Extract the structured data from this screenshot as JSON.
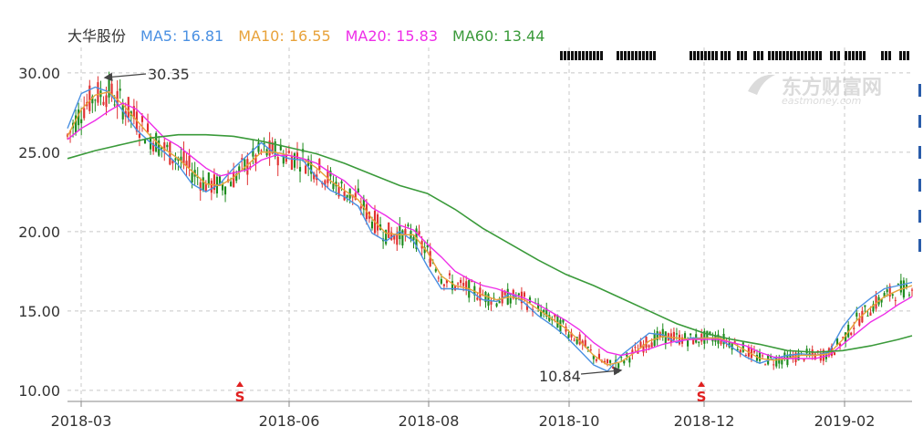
{
  "legend": {
    "stock_name": "大华股份",
    "ma5": "MA5: 16.81",
    "ma10": "MA10: 16.55",
    "ma20": "MA20: 15.83",
    "ma60": "MA60: 13.44"
  },
  "watermark": {
    "brand_cn": "东方财富网",
    "brand_en": "eastmoney.com"
  },
  "colors": {
    "up": "#e03030",
    "down": "#1c8a1c",
    "ma5": "#4a90e2",
    "ma10": "#e8a23a",
    "ma20": "#ee2ee8",
    "ma60": "#3a9a3a",
    "grid": "#c8c8c8",
    "signal": "#e02020"
  },
  "chart_data": {
    "type": "candlestick",
    "x_ticks": [
      "2018-03",
      "2018-06",
      "2018-08",
      "2018-10",
      "2018-12",
      "2019-02"
    ],
    "y_ticks": [
      "10.00",
      "15.00",
      "20.00",
      "25.00",
      "30.00"
    ],
    "ylim": [
      9.3,
      31.6
    ],
    "grid": true,
    "annotations": {
      "high_label": "30.35",
      "low_label": "10.84",
      "signal_label": "S"
    },
    "series": [
      {
        "name": "MA5",
        "value": 16.81,
        "points": [
          [
            0,
            26.5
          ],
          [
            5,
            28.7
          ],
          [
            10,
            29.1
          ],
          [
            15,
            28.8
          ],
          [
            20,
            27.6
          ],
          [
            25,
            26.4
          ],
          [
            30,
            25.6
          ],
          [
            35,
            25.0
          ],
          [
            40,
            24.2
          ],
          [
            45,
            23.0
          ],
          [
            50,
            22.5
          ],
          [
            55,
            23.0
          ],
          [
            60,
            24.0
          ],
          [
            65,
            24.8
          ],
          [
            70,
            25.6
          ],
          [
            75,
            24.9
          ],
          [
            80,
            24.6
          ],
          [
            85,
            24.5
          ],
          [
            90,
            23.4
          ],
          [
            95,
            22.6
          ],
          [
            100,
            22.2
          ],
          [
            105,
            21.6
          ],
          [
            110,
            19.9
          ],
          [
            115,
            19.4
          ],
          [
            120,
            20.0
          ],
          [
            125,
            19.4
          ],
          [
            130,
            17.8
          ],
          [
            135,
            16.4
          ],
          [
            140,
            16.4
          ],
          [
            145,
            16.3
          ],
          [
            150,
            15.7
          ],
          [
            155,
            15.6
          ],
          [
            160,
            16.1
          ],
          [
            165,
            15.5
          ],
          [
            170,
            14.7
          ],
          [
            175,
            14.1
          ],
          [
            180,
            13.4
          ],
          [
            185,
            12.5
          ],
          [
            190,
            11.6
          ],
          [
            195,
            11.2
          ],
          [
            200,
            12.2
          ],
          [
            205,
            12.9
          ],
          [
            210,
            13.6
          ],
          [
            215,
            13.5
          ],
          [
            220,
            13.0
          ],
          [
            225,
            13.3
          ],
          [
            230,
            13.3
          ],
          [
            235,
            13.3
          ],
          [
            240,
            12.7
          ],
          [
            245,
            12.1
          ],
          [
            250,
            11.7
          ],
          [
            255,
            12.0
          ],
          [
            260,
            12.2
          ],
          [
            265,
            12.3
          ],
          [
            270,
            12.2
          ],
          [
            275,
            12.4
          ],
          [
            280,
            14.0
          ],
          [
            285,
            15.1
          ],
          [
            290,
            15.8
          ],
          [
            295,
            16.4
          ],
          [
            300,
            16.6
          ],
          [
            305,
            16.8
          ]
        ]
      },
      {
        "name": "MA10",
        "value": 16.55,
        "points": [
          [
            0,
            26.0
          ],
          [
            5,
            27.7
          ],
          [
            10,
            28.6
          ],
          [
            15,
            28.8
          ],
          [
            20,
            28.0
          ],
          [
            25,
            27.0
          ],
          [
            30,
            26.0
          ],
          [
            35,
            25.2
          ],
          [
            40,
            24.6
          ],
          [
            45,
            23.8
          ],
          [
            50,
            23.0
          ],
          [
            55,
            22.9
          ],
          [
            60,
            23.4
          ],
          [
            65,
            24.2
          ],
          [
            70,
            25.0
          ],
          [
            75,
            25.0
          ],
          [
            80,
            24.8
          ],
          [
            85,
            24.6
          ],
          [
            90,
            24.0
          ],
          [
            95,
            23.2
          ],
          [
            100,
            22.6
          ],
          [
            105,
            22.0
          ],
          [
            110,
            20.8
          ],
          [
            115,
            19.9
          ],
          [
            120,
            19.8
          ],
          [
            125,
            19.8
          ],
          [
            130,
            18.7
          ],
          [
            135,
            17.2
          ],
          [
            140,
            16.6
          ],
          [
            145,
            16.4
          ],
          [
            150,
            16.0
          ],
          [
            155,
            15.7
          ],
          [
            160,
            15.9
          ],
          [
            165,
            15.7
          ],
          [
            170,
            15.1
          ],
          [
            175,
            14.5
          ],
          [
            180,
            13.9
          ],
          [
            185,
            13.1
          ],
          [
            190,
            12.2
          ],
          [
            195,
            11.6
          ],
          [
            200,
            11.8
          ],
          [
            205,
            12.4
          ],
          [
            210,
            13.1
          ],
          [
            215,
            13.4
          ],
          [
            220,
            13.3
          ],
          [
            225,
            13.2
          ],
          [
            230,
            13.3
          ],
          [
            235,
            13.3
          ],
          [
            240,
            13.0
          ],
          [
            245,
            12.5
          ],
          [
            250,
            12.0
          ],
          [
            255,
            11.9
          ],
          [
            260,
            12.0
          ],
          [
            265,
            12.2
          ],
          [
            270,
            12.2
          ],
          [
            275,
            12.3
          ],
          [
            280,
            13.2
          ],
          [
            285,
            14.4
          ],
          [
            290,
            15.2
          ],
          [
            295,
            15.9
          ],
          [
            300,
            16.3
          ],
          [
            305,
            16.6
          ]
        ]
      },
      {
        "name": "MA20",
        "value": 15.83,
        "points": [
          [
            0,
            25.8
          ],
          [
            5,
            26.5
          ],
          [
            10,
            27.0
          ],
          [
            15,
            27.6
          ],
          [
            20,
            28.1
          ],
          [
            25,
            27.7
          ],
          [
            30,
            26.8
          ],
          [
            35,
            25.9
          ],
          [
            40,
            25.4
          ],
          [
            45,
            24.7
          ],
          [
            50,
            24.0
          ],
          [
            55,
            23.5
          ],
          [
            60,
            23.7
          ],
          [
            65,
            23.9
          ],
          [
            70,
            24.5
          ],
          [
            75,
            24.8
          ],
          [
            80,
            24.8
          ],
          [
            85,
            24.6
          ],
          [
            90,
            24.3
          ],
          [
            95,
            23.7
          ],
          [
            100,
            23.2
          ],
          [
            105,
            22.4
          ],
          [
            110,
            21.5
          ],
          [
            115,
            21.0
          ],
          [
            120,
            20.4
          ],
          [
            125,
            20.1
          ],
          [
            130,
            19.2
          ],
          [
            135,
            18.4
          ],
          [
            140,
            17.5
          ],
          [
            145,
            17.0
          ],
          [
            150,
            16.6
          ],
          [
            155,
            16.4
          ],
          [
            160,
            16.1
          ],
          [
            165,
            15.8
          ],
          [
            170,
            15.4
          ],
          [
            175,
            14.9
          ],
          [
            180,
            14.4
          ],
          [
            185,
            13.8
          ],
          [
            190,
            13.0
          ],
          [
            195,
            12.4
          ],
          [
            200,
            12.2
          ],
          [
            205,
            12.4
          ],
          [
            210,
            12.6
          ],
          [
            215,
            12.9
          ],
          [
            220,
            13.1
          ],
          [
            225,
            13.2
          ],
          [
            230,
            13.2
          ],
          [
            235,
            13.2
          ],
          [
            240,
            13.0
          ],
          [
            245,
            12.8
          ],
          [
            250,
            12.4
          ],
          [
            255,
            12.1
          ],
          [
            260,
            12.0
          ],
          [
            265,
            12.0
          ],
          [
            270,
            12.0
          ],
          [
            275,
            12.2
          ],
          [
            280,
            12.9
          ],
          [
            285,
            13.6
          ],
          [
            290,
            14.3
          ],
          [
            295,
            14.8
          ],
          [
            300,
            15.4
          ],
          [
            305,
            15.9
          ]
        ]
      },
      {
        "name": "MA60",
        "value": 13.44,
        "points": [
          [
            0,
            24.6
          ],
          [
            10,
            25.1
          ],
          [
            20,
            25.5
          ],
          [
            30,
            25.9
          ],
          [
            40,
            26.1
          ],
          [
            50,
            26.1
          ],
          [
            60,
            26.0
          ],
          [
            70,
            25.7
          ],
          [
            80,
            25.3
          ],
          [
            90,
            24.9
          ],
          [
            100,
            24.3
          ],
          [
            110,
            23.6
          ],
          [
            120,
            22.9
          ],
          [
            130,
            22.4
          ],
          [
            140,
            21.4
          ],
          [
            150,
            20.2
          ],
          [
            160,
            19.2
          ],
          [
            170,
            18.2
          ],
          [
            180,
            17.3
          ],
          [
            190,
            16.6
          ],
          [
            200,
            15.8
          ],
          [
            210,
            15.0
          ],
          [
            220,
            14.2
          ],
          [
            230,
            13.6
          ],
          [
            240,
            13.2
          ],
          [
            250,
            12.9
          ],
          [
            260,
            12.5
          ],
          [
            270,
            12.4
          ],
          [
            280,
            12.5
          ],
          [
            290,
            12.8
          ],
          [
            300,
            13.2
          ],
          [
            305,
            13.44
          ]
        ]
      }
    ]
  }
}
